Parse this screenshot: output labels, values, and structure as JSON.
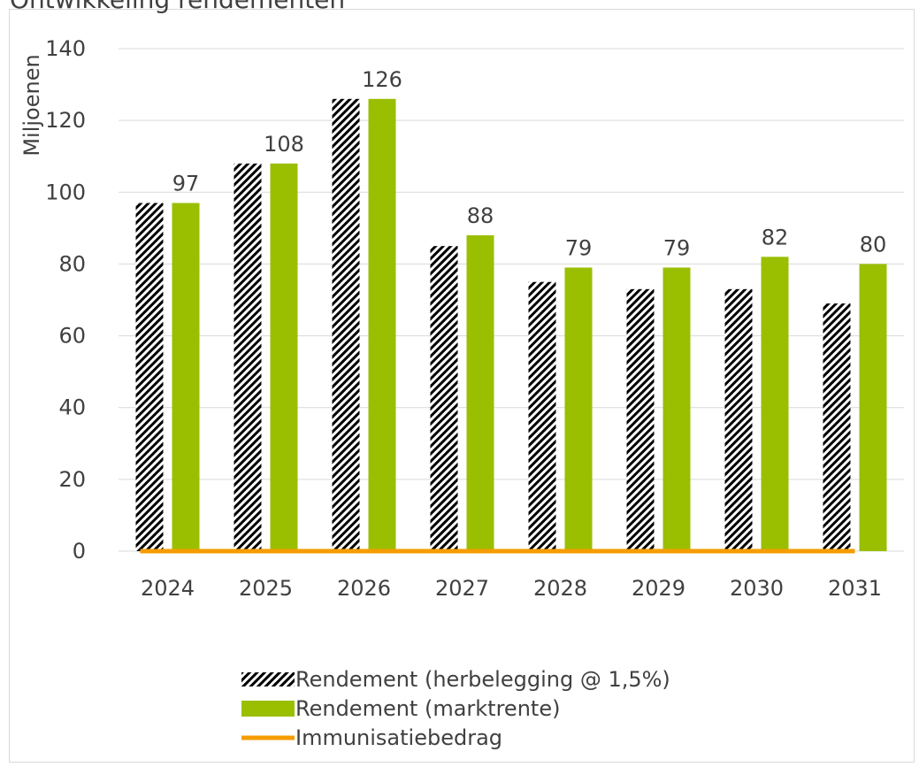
{
  "chart_data": {
    "type": "bar",
    "title": "Ontwikkeling rendementen",
    "ylabel": "Miljoenen",
    "xlabel": "",
    "ylim": [
      0,
      140
    ],
    "yticks": [
      0,
      20,
      40,
      60,
      80,
      100,
      120,
      140
    ],
    "grid": true,
    "legend_position": "bottom",
    "categories": [
      "2024",
      "2025",
      "2026",
      "2027",
      "2028",
      "2029",
      "2030",
      "2031"
    ],
    "series": [
      {
        "name": "Rendement (herbelegging @ 1,5%)",
        "type": "bar",
        "pattern": "diagonal-hatch",
        "color": "#000000",
        "values": [
          97,
          108,
          126,
          85,
          75,
          73,
          73,
          69
        ]
      },
      {
        "name": "Rendement (marktrente)",
        "type": "bar",
        "color": "#99bf00",
        "values": [
          97,
          108,
          126,
          88,
          79,
          79,
          82,
          80
        ],
        "data_labels": [
          "97",
          "108",
          "126",
          "88",
          "79",
          "79",
          "82",
          "80"
        ]
      },
      {
        "name": "Immunisatiebedrag",
        "type": "line",
        "color": "#f59c00",
        "values": [
          0,
          0,
          0,
          0,
          0,
          0,
          0,
          0
        ]
      }
    ]
  }
}
